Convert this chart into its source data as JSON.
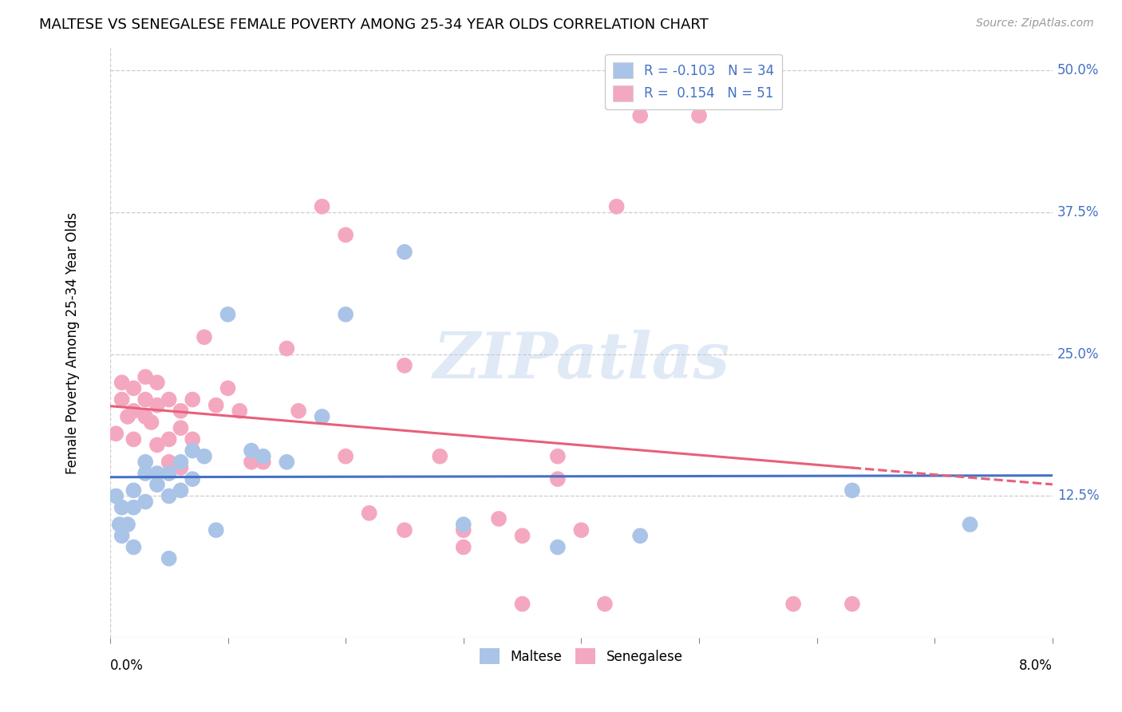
{
  "title": "MALTESE VS SENEGALESE FEMALE POVERTY AMONG 25-34 YEAR OLDS CORRELATION CHART",
  "source": "Source: ZipAtlas.com",
  "ylabel": "Female Poverty Among 25-34 Year Olds",
  "ytick_labels": [
    "12.5%",
    "25.0%",
    "37.5%",
    "50.0%"
  ],
  "ytick_values": [
    0.125,
    0.25,
    0.375,
    0.5
  ],
  "xlim": [
    0.0,
    0.08
  ],
  "ylim": [
    0.0,
    0.52
  ],
  "maltese_color": "#aac4e8",
  "senegalese_color": "#f4a8c0",
  "maltese_line_color": "#4472c4",
  "senegalese_line_color": "#e8607a",
  "legend_maltese_label": "R = -0.103   N = 34",
  "legend_senegalese_label": "R =  0.154   N = 51",
  "maltese_x": [
    0.0005,
    0.0008,
    0.001,
    0.001,
    0.0015,
    0.002,
    0.002,
    0.002,
    0.003,
    0.003,
    0.003,
    0.004,
    0.004,
    0.005,
    0.005,
    0.005,
    0.006,
    0.006,
    0.007,
    0.007,
    0.008,
    0.009,
    0.01,
    0.012,
    0.013,
    0.015,
    0.018,
    0.02,
    0.025,
    0.03,
    0.038,
    0.045,
    0.063,
    0.073
  ],
  "maltese_y": [
    0.125,
    0.1,
    0.115,
    0.09,
    0.1,
    0.13,
    0.115,
    0.08,
    0.155,
    0.145,
    0.12,
    0.145,
    0.135,
    0.145,
    0.125,
    0.07,
    0.155,
    0.13,
    0.165,
    0.14,
    0.16,
    0.095,
    0.285,
    0.165,
    0.16,
    0.155,
    0.195,
    0.285,
    0.34,
    0.1,
    0.08,
    0.09,
    0.13,
    0.1
  ],
  "senegalese_x": [
    0.0005,
    0.001,
    0.001,
    0.0015,
    0.002,
    0.002,
    0.002,
    0.003,
    0.003,
    0.003,
    0.0035,
    0.004,
    0.004,
    0.004,
    0.005,
    0.005,
    0.005,
    0.006,
    0.006,
    0.006,
    0.007,
    0.007,
    0.008,
    0.009,
    0.01,
    0.011,
    0.012,
    0.013,
    0.015,
    0.016,
    0.018,
    0.02,
    0.022,
    0.025,
    0.028,
    0.03,
    0.033,
    0.035,
    0.038,
    0.04,
    0.043,
    0.02,
    0.025,
    0.03,
    0.035,
    0.038,
    0.042,
    0.045,
    0.05,
    0.058,
    0.063
  ],
  "senegalese_y": [
    0.18,
    0.225,
    0.21,
    0.195,
    0.22,
    0.2,
    0.175,
    0.23,
    0.21,
    0.195,
    0.19,
    0.225,
    0.205,
    0.17,
    0.21,
    0.175,
    0.155,
    0.2,
    0.185,
    0.15,
    0.21,
    0.175,
    0.265,
    0.205,
    0.22,
    0.2,
    0.155,
    0.155,
    0.255,
    0.2,
    0.38,
    0.355,
    0.11,
    0.24,
    0.16,
    0.095,
    0.105,
    0.09,
    0.14,
    0.095,
    0.38,
    0.16,
    0.095,
    0.08,
    0.03,
    0.16,
    0.03,
    0.46,
    0.46,
    0.03,
    0.03
  ]
}
